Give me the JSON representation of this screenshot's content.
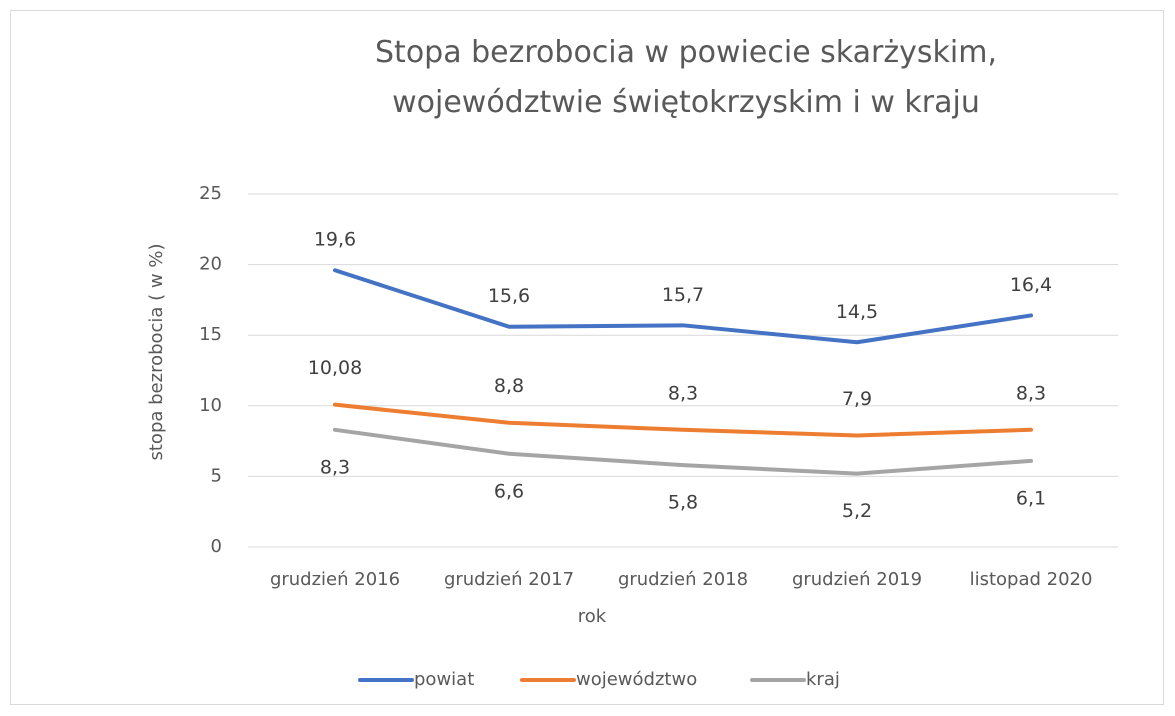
{
  "chart_data": {
    "type": "line",
    "title": "Stopa bezrobocia w powiecie skarżyskim, województwie świętokrzyskim i w kraju",
    "x_label": "rok",
    "y_label": "stopa bezrobocia ( w %)",
    "categories": [
      "grudzień 2016",
      "grudzień 2017",
      "grudzień 2018",
      "grudzień 2019",
      "listopad 2020"
    ],
    "series": [
      {
        "name": "powiat",
        "color": "#4472c4",
        "values": [
          19.6,
          15.6,
          15.7,
          14.5,
          16.4
        ],
        "value_labels": [
          "19,6",
          "15,6",
          "15,7",
          "14,5",
          "16,4"
        ]
      },
      {
        "name": "województwo",
        "color": "#ed7d31",
        "values": [
          10.08,
          8.8,
          8.3,
          7.9,
          8.3
        ],
        "value_labels": [
          "10,08",
          "8,8",
          "8,3",
          "7,9",
          "8,3"
        ]
      },
      {
        "name": "kraj",
        "color": "#a5a5a5",
        "values": [
          8.3,
          6.6,
          5.8,
          5.2,
          6.1
        ],
        "value_labels": [
          "8,3",
          "6,6",
          "5,8",
          "5,2",
          "6,1"
        ]
      }
    ],
    "ylim": [
      0,
      25
    ],
    "yticks": [
      0,
      5,
      10,
      15,
      20,
      25
    ],
    "grid": true,
    "legend": "bottom"
  }
}
